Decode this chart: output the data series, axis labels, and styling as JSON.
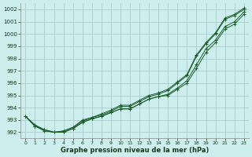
{
  "xlabel": "Graphe pression niveau de la mer (hPa)",
  "background_color": "#cceeed",
  "grid_color": "#aacccc",
  "line_color": "#1a5c2a",
  "ylim": [
    991.5,
    1002.5
  ],
  "xlim": [
    -0.5,
    23.5
  ],
  "yticks": [
    992,
    993,
    994,
    995,
    996,
    997,
    998,
    999,
    1000,
    1001,
    1002
  ],
  "xticks": [
    0,
    1,
    2,
    3,
    4,
    5,
    6,
    7,
    8,
    9,
    10,
    11,
    12,
    13,
    14,
    15,
    16,
    17,
    18,
    19,
    20,
    21,
    22,
    23
  ],
  "series": [
    [
      993.3,
      992.6,
      992.2,
      992.0,
      992.1,
      992.4,
      992.9,
      993.2,
      993.4,
      993.7,
      994.1,
      994.1,
      994.5,
      994.9,
      995.1,
      995.4,
      996.0,
      996.6,
      998.2,
      999.2,
      1000.0,
      1001.2,
      1001.5,
      1002.0
    ],
    [
      993.3,
      992.5,
      992.2,
      992.0,
      992.0,
      992.3,
      992.8,
      993.1,
      993.3,
      993.6,
      993.9,
      993.9,
      994.3,
      994.7,
      994.9,
      995.1,
      995.6,
      996.2,
      997.5,
      998.8,
      999.5,
      1000.6,
      1001.0,
      1001.8
    ],
    [
      993.3,
      992.5,
      992.1,
      992.0,
      992.0,
      992.3,
      992.8,
      993.1,
      993.3,
      993.6,
      993.9,
      993.9,
      994.3,
      994.7,
      994.9,
      995.0,
      995.5,
      996.0,
      997.2,
      998.5,
      999.3,
      1000.4,
      1000.8,
      1001.6
    ]
  ],
  "series2": [
    [
      993.3,
      992.5,
      992.2,
      992.0,
      992.1,
      992.4,
      993.0,
      993.2,
      993.5,
      993.8,
      994.2,
      994.2,
      994.6,
      995.0,
      995.2,
      995.5,
      996.1,
      996.7,
      998.3,
      999.3,
      1000.1,
      1001.3,
      1001.6,
      1002.1
    ]
  ]
}
